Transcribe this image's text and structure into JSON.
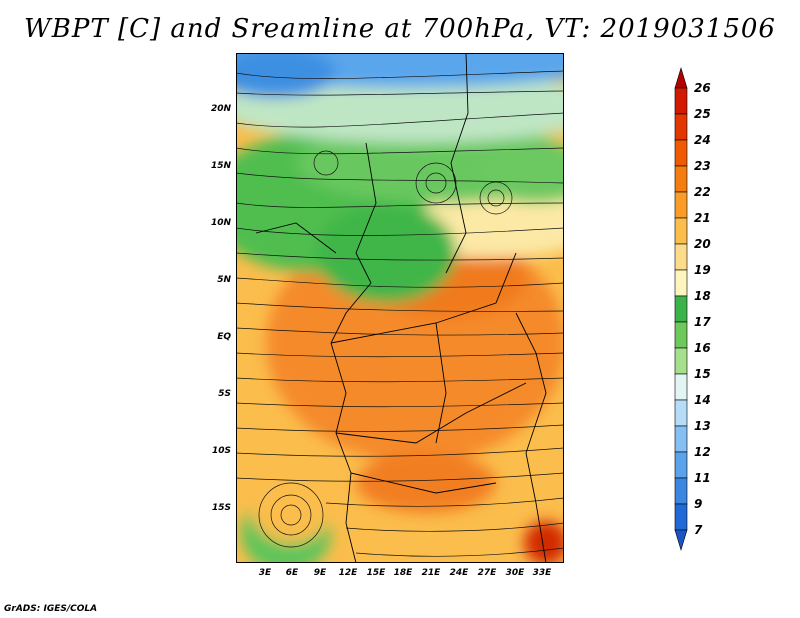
{
  "title": "WBPT [C] and Sreamline at 700hPa, VT: 2019031506",
  "footer": "GrADS: IGES/COLA",
  "lat_labels": [
    "20N",
    "15N",
    "10N",
    "5N",
    "EQ",
    "5S",
    "10S",
    "15S"
  ],
  "lon_labels": [
    "3E",
    "6E",
    "9E",
    "12E",
    "15E",
    "18E",
    "21E",
    "24E",
    "27E",
    "30E",
    "33E"
  ],
  "colorbar": {
    "labels": [
      "26",
      "25",
      "24",
      "23",
      "22",
      "21",
      "20",
      "19",
      "18",
      "17",
      "16",
      "15",
      "14",
      "13",
      "12",
      "11",
      "9",
      "7"
    ],
    "colors": [
      "#b40000",
      "#d21a00",
      "#e23800",
      "#f05a00",
      "#f57d10",
      "#fa9c28",
      "#fbbd4c",
      "#fcdc8a",
      "#fdf5c0",
      "#39b34a",
      "#6ec95c",
      "#a7e08c",
      "#e2f5f2",
      "#b6dcf8",
      "#86bff2",
      "#5aa2ea",
      "#3a86e0",
      "#1f6ad6",
      "#1a55c4"
    ]
  },
  "colors": {
    "ocean_hot": "#f58a2a",
    "warm": "#fbb84a",
    "cool_green": "#4fbe4f",
    "sky": "#5aa6ec"
  }
}
